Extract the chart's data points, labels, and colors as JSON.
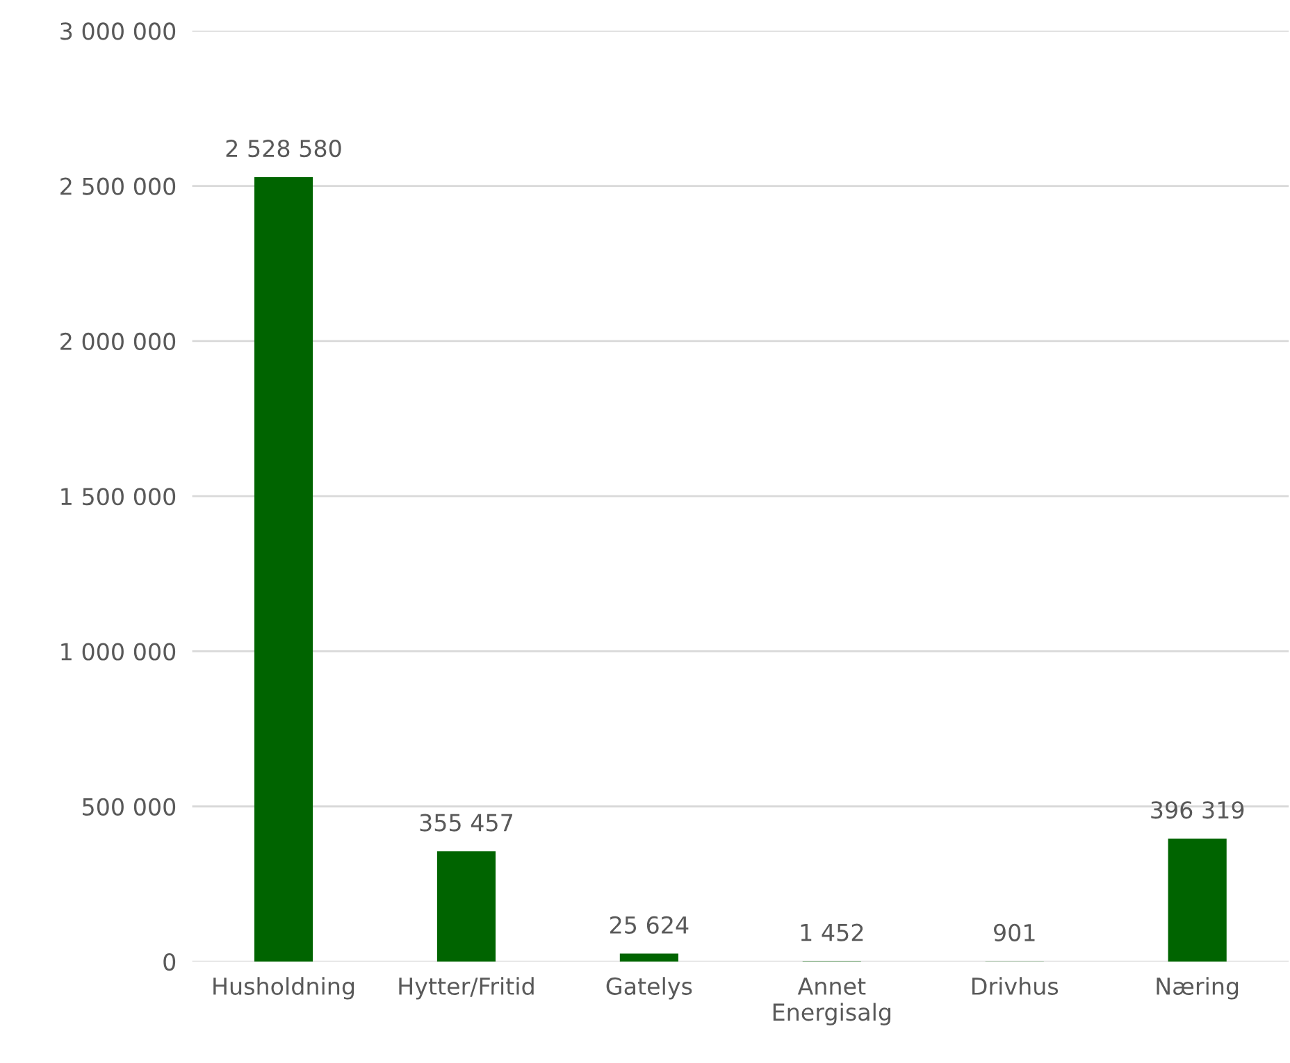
{
  "chart_data": {
    "type": "bar",
    "categories": [
      "Husholdning",
      "Hytter/Fritid",
      "Gatelys",
      "Annet\nEnergisalg",
      "Drivhus",
      "Næring"
    ],
    "values": [
      2528580,
      355457,
      25624,
      1452,
      901,
      396319
    ],
    "value_labels": [
      "2 528 580",
      "355 457",
      "25 624",
      "1 452",
      "901",
      "396 319"
    ],
    "color": "#006400",
    "ylim": [
      0,
      3000000
    ],
    "yticks": [
      {
        "value": 0,
        "label": "0"
      },
      {
        "value": 500000,
        "label": "500 000"
      },
      {
        "value": 1000000,
        "label": "1 000 000"
      },
      {
        "value": 1500000,
        "label": "1 500 000"
      },
      {
        "value": 2000000,
        "label": "2 000 000"
      },
      {
        "value": 2500000,
        "label": "2 500 000"
      },
      {
        "value": 3000000,
        "label": "3 000 000"
      }
    ],
    "grid": "y",
    "legend": false
  }
}
